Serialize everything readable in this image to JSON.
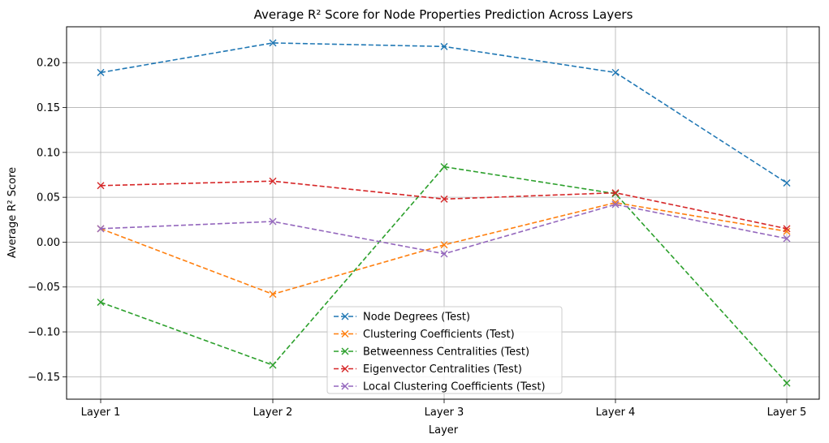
{
  "chart_data": {
    "type": "line",
    "title": "Average R² Score for Node Properties Prediction Across Layers",
    "xlabel": "Layer",
    "ylabel": "Average R² Score",
    "categories": [
      "Layer 1",
      "Layer 2",
      "Layer 3",
      "Layer 4",
      "Layer 5"
    ],
    "ylim": [
      -0.175,
      0.24
    ],
    "yticks": [
      -0.15,
      -0.1,
      -0.05,
      0.0,
      0.05,
      0.1,
      0.15,
      0.2
    ],
    "ytick_labels": [
      "−0.15",
      "−0.10",
      "−0.05",
      "0.00",
      "0.05",
      "0.10",
      "0.15",
      "0.20"
    ],
    "grid": true,
    "legend_position": "lower-center",
    "series": [
      {
        "name": "Node Degrees (Test)",
        "color": "#1f77b4",
        "values": [
          0.189,
          0.222,
          0.218,
          0.189,
          0.066
        ]
      },
      {
        "name": "Clustering Coefficients (Test)",
        "color": "#ff7f0e",
        "values": [
          0.015,
          -0.058,
          -0.003,
          0.044,
          0.012
        ]
      },
      {
        "name": "Betweenness Centralities (Test)",
        "color": "#2ca02c",
        "values": [
          -0.067,
          -0.137,
          0.084,
          0.054,
          -0.157
        ]
      },
      {
        "name": "Eigenvector Centralities (Test)",
        "color": "#d62728",
        "values": [
          0.063,
          0.068,
          0.048,
          0.055,
          0.015
        ]
      },
      {
        "name": "Local Clustering Coefficients (Test)",
        "color": "#9467bd",
        "values": [
          0.015,
          0.023,
          -0.013,
          0.042,
          0.004
        ]
      }
    ]
  }
}
